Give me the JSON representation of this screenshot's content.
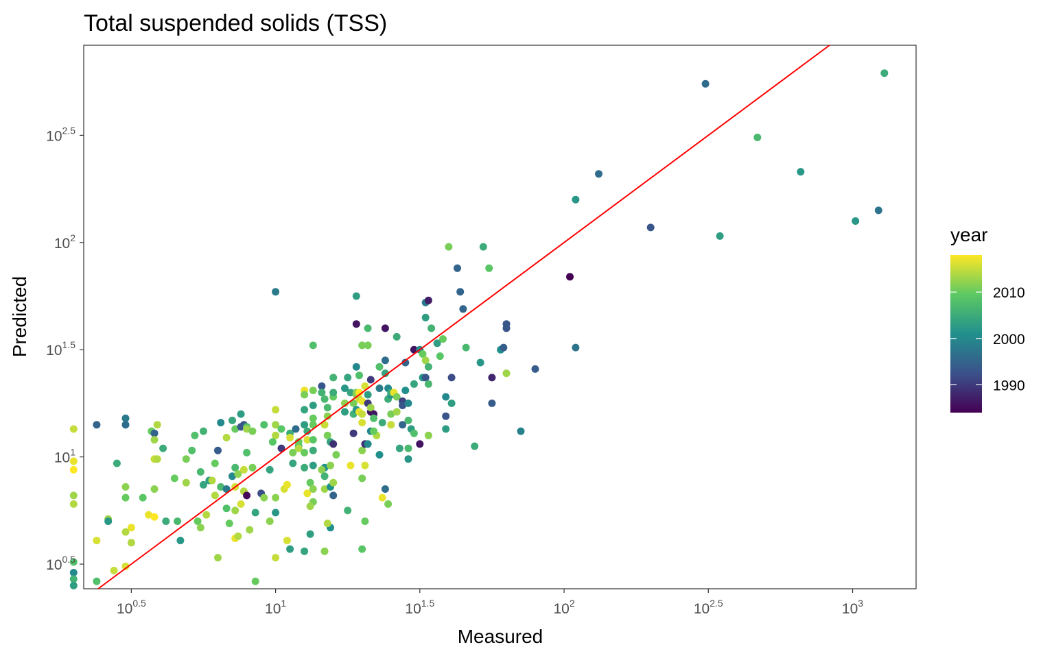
{
  "chart_data": {
    "type": "scatter",
    "title": "Total suspended solids (TSS)",
    "xlabel": "Measured",
    "ylabel": "Predicted",
    "x_scale": "log10",
    "y_scale": "log10",
    "xlim_log10": [
      0.335,
      3.22
    ],
    "ylim_log10": [
      0.385,
      2.92
    ],
    "x_ticks": [
      {
        "log": 0.5,
        "base": "10",
        "exp": "0.5"
      },
      {
        "log": 1.0,
        "base": "10",
        "exp": "1"
      },
      {
        "log": 1.5,
        "base": "10",
        "exp": "1.5"
      },
      {
        "log": 2.0,
        "base": "10",
        "exp": "2"
      },
      {
        "log": 2.5,
        "base": "10",
        "exp": "2.5"
      },
      {
        "log": 3.0,
        "base": "10",
        "exp": "3"
      }
    ],
    "y_ticks": [
      {
        "log": 0.5,
        "base": "10",
        "exp": "0.5"
      },
      {
        "log": 1.0,
        "base": "10",
        "exp": "1"
      },
      {
        "log": 1.5,
        "base": "10",
        "exp": "1.5"
      },
      {
        "log": 2.0,
        "base": "10",
        "exp": "2"
      },
      {
        "log": 2.5,
        "base": "10",
        "exp": "2.5"
      }
    ],
    "grid": false,
    "reference_line": {
      "type": "y = x",
      "color": "#ff0000"
    },
    "legend": {
      "title": "year",
      "position": "right",
      "type": "colorbar",
      "palette": "viridis",
      "range": [
        1984,
        2018
      ],
      "ticks": [
        2010,
        2000,
        1990
      ],
      "stops": [
        "#440154",
        "#3b528b",
        "#21908c",
        "#5dc963",
        "#fde725"
      ]
    },
    "points": [
      [
        0.3,
        1.13,
        2015
      ],
      [
        0.3,
        0.98,
        2017
      ],
      [
        0.3,
        0.94,
        2018
      ],
      [
        0.3,
        0.82,
        2013
      ],
      [
        0.3,
        0.78,
        2014
      ],
      [
        0.3,
        0.51,
        2008
      ],
      [
        0.3,
        0.46,
        2000
      ],
      [
        0.3,
        0.43,
        2006
      ],
      [
        0.3,
        0.4,
        2003
      ],
      [
        0.38,
        1.15,
        1995
      ],
      [
        0.38,
        0.61,
        2016
      ],
      [
        0.38,
        0.42,
        2008
      ],
      [
        0.45,
        0.97,
        2005
      ],
      [
        0.42,
        0.71,
        2013
      ],
      [
        0.42,
        0.7,
        2002
      ],
      [
        0.44,
        0.47,
        2015
      ],
      [
        0.48,
        1.18,
        1998
      ],
      [
        0.48,
        1.15,
        1996
      ],
      [
        0.48,
        0.86,
        2012
      ],
      [
        0.48,
        0.81,
        2010
      ],
      [
        0.48,
        0.65,
        2014
      ],
      [
        0.48,
        0.49,
        2016
      ],
      [
        0.5,
        0.67,
        2017
      ],
      [
        0.5,
        0.6,
        2014
      ],
      [
        0.54,
        0.81,
        2009
      ],
      [
        0.57,
        1.12,
        2010
      ],
      [
        0.56,
        0.73,
        2017
      ],
      [
        0.58,
        1.11,
        1995
      ],
      [
        0.58,
        1.08,
        2013
      ],
      [
        0.59,
        1.15,
        2014
      ],
      [
        0.58,
        0.99,
        2015
      ],
      [
        0.59,
        0.99,
        2014
      ],
      [
        0.58,
        0.85,
        2012
      ],
      [
        0.58,
        0.72,
        2018
      ],
      [
        0.61,
        1.04,
        2005
      ],
      [
        0.62,
        0.7,
        2005
      ],
      [
        0.65,
        0.9,
        2010
      ],
      [
        0.66,
        0.7,
        2007
      ],
      [
        0.67,
        0.61,
        2002
      ],
      [
        0.69,
        0.99,
        2011
      ],
      [
        0.69,
        0.88,
        2013
      ],
      [
        0.71,
        1.03,
        2008
      ],
      [
        0.72,
        1.1,
        2008
      ],
      [
        0.73,
        0.7,
        2010
      ],
      [
        0.74,
        0.67,
        2012
      ],
      [
        0.75,
        1.12,
        2006
      ],
      [
        0.74,
        0.93,
        2007
      ],
      [
        0.75,
        0.87,
        2004
      ],
      [
        0.76,
        0.73,
        2014
      ],
      [
        0.77,
        0.89,
        2003
      ],
      [
        0.78,
        0.89,
        2014
      ],
      [
        0.79,
        0.97,
        2010
      ],
      [
        0.79,
        0.82,
        2014
      ],
      [
        0.81,
        1.16,
        2000
      ],
      [
        0.81,
        0.86,
        2007
      ],
      [
        0.8,
        1.03,
        1994
      ],
      [
        0.8,
        0.53,
        2013
      ],
      [
        0.83,
        1.09,
        2014
      ],
      [
        0.83,
        0.85,
        1998
      ],
      [
        0.83,
        0.76,
        2008
      ],
      [
        0.84,
        0.69,
        2010
      ],
      [
        0.85,
        1.17,
        2004
      ],
      [
        0.86,
        1.13,
        2010
      ],
      [
        0.86,
        0.95,
        2007
      ],
      [
        0.85,
        0.91,
        2000
      ],
      [
        0.87,
        0.92,
        2012
      ],
      [
        0.86,
        0.86,
        2016
      ],
      [
        0.86,
        0.75,
        2013
      ],
      [
        0.86,
        0.62,
        2017
      ],
      [
        0.88,
        1.14,
        1993
      ],
      [
        0.88,
        1.2,
        2003
      ],
      [
        0.89,
        1.15,
        1993
      ],
      [
        0.89,
        0.94,
        2015
      ],
      [
        0.88,
        0.78,
        2016
      ],
      [
        0.87,
        0.63,
        2014
      ],
      [
        0.89,
        0.84,
        2014
      ],
      [
        0.9,
        1.14,
        2008
      ],
      [
        0.9,
        1.13,
        2013
      ],
      [
        0.9,
        1.02,
        2008
      ],
      [
        0.9,
        0.82,
        1985
      ],
      [
        0.91,
        0.66,
        2013
      ],
      [
        0.92,
        1.12,
        2011
      ],
      [
        0.92,
        0.95,
        2011
      ],
      [
        0.93,
        0.74,
        2004
      ],
      [
        0.93,
        0.42,
        2010
      ],
      [
        0.95,
        0.83,
        1992
      ],
      [
        0.96,
        1.15,
        2008
      ],
      [
        0.96,
        0.81,
        2012
      ],
      [
        0.98,
        0.7,
        2012
      ],
      [
        0.98,
        0.94,
        2004
      ],
      [
        1.0,
        1.77,
        1998
      ],
      [
        1.0,
        1.22,
        2015
      ],
      [
        1.0,
        1.15,
        2013
      ],
      [
        1.0,
        1.1,
        2014
      ],
      [
        0.99,
        1.07,
        2009
      ],
      [
        1.0,
        0.81,
        2012
      ],
      [
        1.0,
        0.74,
        2002
      ],
      [
        1.0,
        0.53,
        2015
      ],
      [
        1.02,
        1.13,
        2009
      ],
      [
        1.02,
        1.04,
        1990
      ],
      [
        1.03,
        0.85,
        2016
      ],
      [
        1.04,
        0.87,
        2017
      ],
      [
        1.04,
        0.61,
        2016
      ],
      [
        1.05,
        0.57,
        2003
      ],
      [
        1.05,
        1.11,
        2005
      ],
      [
        1.05,
        1.09,
        2016
      ],
      [
        1.06,
        1.02,
        2011
      ],
      [
        1.06,
        0.97,
        2004
      ],
      [
        1.07,
        1.13,
        1996
      ],
      [
        1.08,
        1.05,
        2006
      ],
      [
        1.08,
        1.07,
        2010
      ],
      [
        1.08,
        1.04,
        2014
      ],
      [
        1.1,
        1.31,
        2017
      ],
      [
        1.1,
        1.29,
        2011
      ],
      [
        1.1,
        1.22,
        2004
      ],
      [
        1.1,
        1.15,
        2003
      ],
      [
        1.11,
        1.12,
        2005
      ],
      [
        1.11,
        1.08,
        2016
      ],
      [
        1.1,
        1.02,
        2010
      ],
      [
        1.1,
        0.95,
        2005
      ],
      [
        1.12,
        0.88,
        2010
      ],
      [
        1.11,
        0.83,
        2017
      ],
      [
        1.1,
        0.56,
        2004
      ],
      [
        1.13,
        1.52,
        2008
      ],
      [
        1.13,
        1.31,
        2011
      ],
      [
        1.13,
        1.24,
        2003
      ],
      [
        1.13,
        1.18,
        2010
      ],
      [
        1.13,
        1.15,
        2010
      ],
      [
        1.13,
        1.08,
        2009
      ],
      [
        1.13,
        1.03,
        2005
      ],
      [
        1.13,
        0.96,
        2003
      ],
      [
        1.13,
        0.85,
        2012
      ],
      [
        1.13,
        0.79,
        2011
      ],
      [
        1.12,
        0.77,
        2013
      ],
      [
        1.12,
        0.64,
        2003
      ],
      [
        1.16,
        1.33,
        1993
      ],
      [
        1.16,
        1.3,
        2006
      ],
      [
        1.17,
        1.27,
        2007
      ],
      [
        1.17,
        1.15,
        2015
      ],
      [
        1.18,
        1.1,
        2011
      ],
      [
        1.17,
        0.95,
        2001
      ],
      [
        1.16,
        0.94,
        2012
      ],
      [
        1.17,
        0.91,
        2006
      ],
      [
        1.17,
        0.85,
        2013
      ],
      [
        1.17,
        0.56,
        2012
      ],
      [
        1.18,
        1.23,
        2007
      ],
      [
        1.18,
        1.19,
        2012
      ],
      [
        1.19,
        1.07,
        2004
      ],
      [
        1.19,
        0.96,
        2012
      ],
      [
        1.19,
        0.86,
        2001
      ],
      [
        1.19,
        0.67,
        2001
      ],
      [
        1.18,
        0.69,
        2014
      ],
      [
        1.2,
        1.37,
        2006
      ],
      [
        1.2,
        1.28,
        2010
      ],
      [
        1.2,
        1.3,
        2005
      ],
      [
        1.2,
        1.06,
        1989
      ],
      [
        1.21,
        1.01,
        2011
      ],
      [
        1.2,
        0.88,
        2013
      ],
      [
        1.2,
        0.82,
        1995
      ],
      [
        1.24,
        1.25,
        2012
      ],
      [
        1.24,
        1.21,
        2003
      ],
      [
        1.25,
        0.75,
        2006
      ],
      [
        1.26,
        1.3,
        2004
      ],
      [
        1.26,
        0.96,
        2017
      ],
      [
        1.24,
        1.32,
        2002
      ],
      [
        1.25,
        1.37,
        2004
      ],
      [
        1.27,
        1.25,
        2011
      ],
      [
        1.27,
        1.11,
        1990
      ],
      [
        1.27,
        1.2,
        2006
      ],
      [
        1.28,
        1.62,
        1986
      ],
      [
        1.28,
        1.3,
        2011
      ],
      [
        1.28,
        1.22,
        2002
      ],
      [
        1.28,
        1.29,
        2012
      ],
      [
        1.28,
        1.42,
        2000
      ],
      [
        1.28,
        1.75,
        2003
      ],
      [
        1.29,
        1.38,
        2008
      ],
      [
        1.29,
        1.3,
        2018
      ],
      [
        1.29,
        1.27,
        2015
      ],
      [
        1.29,
        1.21,
        2017
      ],
      [
        1.3,
        1.52,
        2011
      ],
      [
        1.3,
        1.16,
        2016
      ],
      [
        1.3,
        1.26,
        2017
      ],
      [
        1.3,
        1.2,
        2015
      ],
      [
        1.3,
        1.03,
        2012
      ],
      [
        1.31,
        1.06,
        1989
      ],
      [
        1.31,
        0.96,
        2016
      ],
      [
        1.3,
        0.9,
        2011
      ],
      [
        1.31,
        0.7,
        2010
      ],
      [
        1.3,
        0.57,
        2009
      ],
      [
        1.32,
        1.6,
        2007
      ],
      [
        1.32,
        1.52,
        2011
      ],
      [
        1.31,
        1.33,
        2016
      ],
      [
        1.32,
        1.29,
        2003
      ],
      [
        1.32,
        1.25,
        1990
      ],
      [
        1.33,
        1.21,
        1986
      ],
      [
        1.33,
        1.12,
        2000
      ],
      [
        1.32,
        1.06,
        2000
      ],
      [
        1.33,
        1.36,
        1990
      ],
      [
        1.33,
        1.23,
        2013
      ],
      [
        1.34,
        1.2,
        1986
      ],
      [
        1.34,
        1.18,
        2008
      ],
      [
        1.35,
        1.1,
        2014
      ],
      [
        1.34,
        1.12,
        2010
      ],
      [
        1.36,
        1.42,
        2008
      ],
      [
        1.36,
        1.32,
        1998
      ],
      [
        1.37,
        1.16,
        2005
      ],
      [
        1.36,
        1.01,
        2001
      ],
      [
        1.37,
        0.81,
        2017
      ],
      [
        1.39,
        0.78,
        2011
      ],
      [
        1.38,
        1.6,
        1986
      ],
      [
        1.38,
        1.45,
        1996
      ],
      [
        1.38,
        1.39,
        2004
      ],
      [
        1.38,
        0.85,
        1996
      ],
      [
        1.39,
        1.32,
        2000
      ],
      [
        1.39,
        1.27,
        2005
      ],
      [
        1.4,
        1.29,
        2001
      ],
      [
        1.4,
        1.3,
        2005
      ],
      [
        1.4,
        1.2,
        2011
      ],
      [
        1.4,
        1.15,
        2015
      ],
      [
        1.41,
        1.3,
        2017
      ],
      [
        1.42,
        1.56,
        2005
      ],
      [
        1.42,
        1.28,
        2011
      ],
      [
        1.42,
        1.21,
        2013
      ],
      [
        1.43,
        1.04,
        2004
      ],
      [
        1.44,
        1.15,
        1995
      ],
      [
        1.44,
        1.26,
        1991
      ],
      [
        1.44,
        1.24,
        1993
      ],
      [
        1.45,
        1.44,
        1995
      ],
      [
        1.45,
        1.31,
        2001
      ],
      [
        1.46,
        1.25,
        2000
      ],
      [
        1.46,
        1.17,
        2007
      ],
      [
        1.46,
        1.04,
        2007
      ],
      [
        1.46,
        0.99,
        2002
      ],
      [
        1.47,
        1.13,
        2003
      ],
      [
        1.48,
        1.34,
        2004
      ],
      [
        1.48,
        1.11,
        2008
      ],
      [
        1.5,
        1.06,
        1986
      ],
      [
        1.48,
        1.5,
        1986
      ],
      [
        1.5,
        1.5,
        2000
      ],
      [
        1.52,
        1.72,
        1998
      ],
      [
        1.51,
        1.48,
        2010
      ],
      [
        1.51,
        1.37,
        2002
      ],
      [
        1.52,
        1.37,
        1993
      ],
      [
        1.53,
        1.73,
        1987
      ],
      [
        1.52,
        1.65,
        2003
      ],
      [
        1.52,
        1.45,
        2013
      ],
      [
        1.53,
        1.42,
        2006
      ],
      [
        1.53,
        1.34,
        2007
      ],
      [
        1.53,
        1.1,
        2012
      ],
      [
        1.54,
        1.6,
        2006
      ],
      [
        1.56,
        1.53,
        2003
      ],
      [
        1.57,
        1.47,
        2009
      ],
      [
        1.58,
        1.55,
        2010
      ],
      [
        1.59,
        1.28,
        2000
      ],
      [
        1.59,
        1.19,
        1993
      ],
      [
        1.59,
        1.13,
        2003
      ],
      [
        1.6,
        1.98,
        2011
      ],
      [
        1.61,
        1.37,
        1992
      ],
      [
        1.61,
        1.25,
        2003
      ],
      [
        1.63,
        1.88,
        1995
      ],
      [
        1.64,
        1.77,
        1995
      ],
      [
        1.65,
        1.69,
        1995
      ],
      [
        1.66,
        1.51,
        2007
      ],
      [
        1.69,
        1.05,
        2005
      ],
      [
        1.71,
        1.44,
        2002
      ],
      [
        1.72,
        1.98,
        2005
      ],
      [
        1.74,
        1.88,
        2009
      ],
      [
        1.75,
        1.37,
        1988
      ],
      [
        1.75,
        1.25,
        1994
      ],
      [
        1.78,
        1.5,
        2001
      ],
      [
        1.79,
        1.51,
        1994
      ],
      [
        1.8,
        1.62,
        1993
      ],
      [
        1.8,
        1.6,
        1993
      ],
      [
        1.8,
        1.39,
        2013
      ],
      [
        1.85,
        1.12,
        1999
      ],
      [
        1.9,
        1.41,
        1994
      ],
      [
        2.02,
        1.84,
        1984
      ],
      [
        2.04,
        2.2,
        2002
      ],
      [
        2.04,
        1.51,
        1997
      ],
      [
        2.12,
        2.32,
        1996
      ],
      [
        2.3,
        2.07,
        1993
      ],
      [
        2.49,
        2.74,
        1996
      ],
      [
        2.54,
        2.03,
        2003
      ],
      [
        2.67,
        2.49,
        2007
      ],
      [
        2.82,
        2.33,
        2002
      ],
      [
        3.01,
        2.1,
        2002
      ],
      [
        3.09,
        2.15,
        1997
      ],
      [
        3.11,
        2.79,
        2005
      ]
    ]
  }
}
